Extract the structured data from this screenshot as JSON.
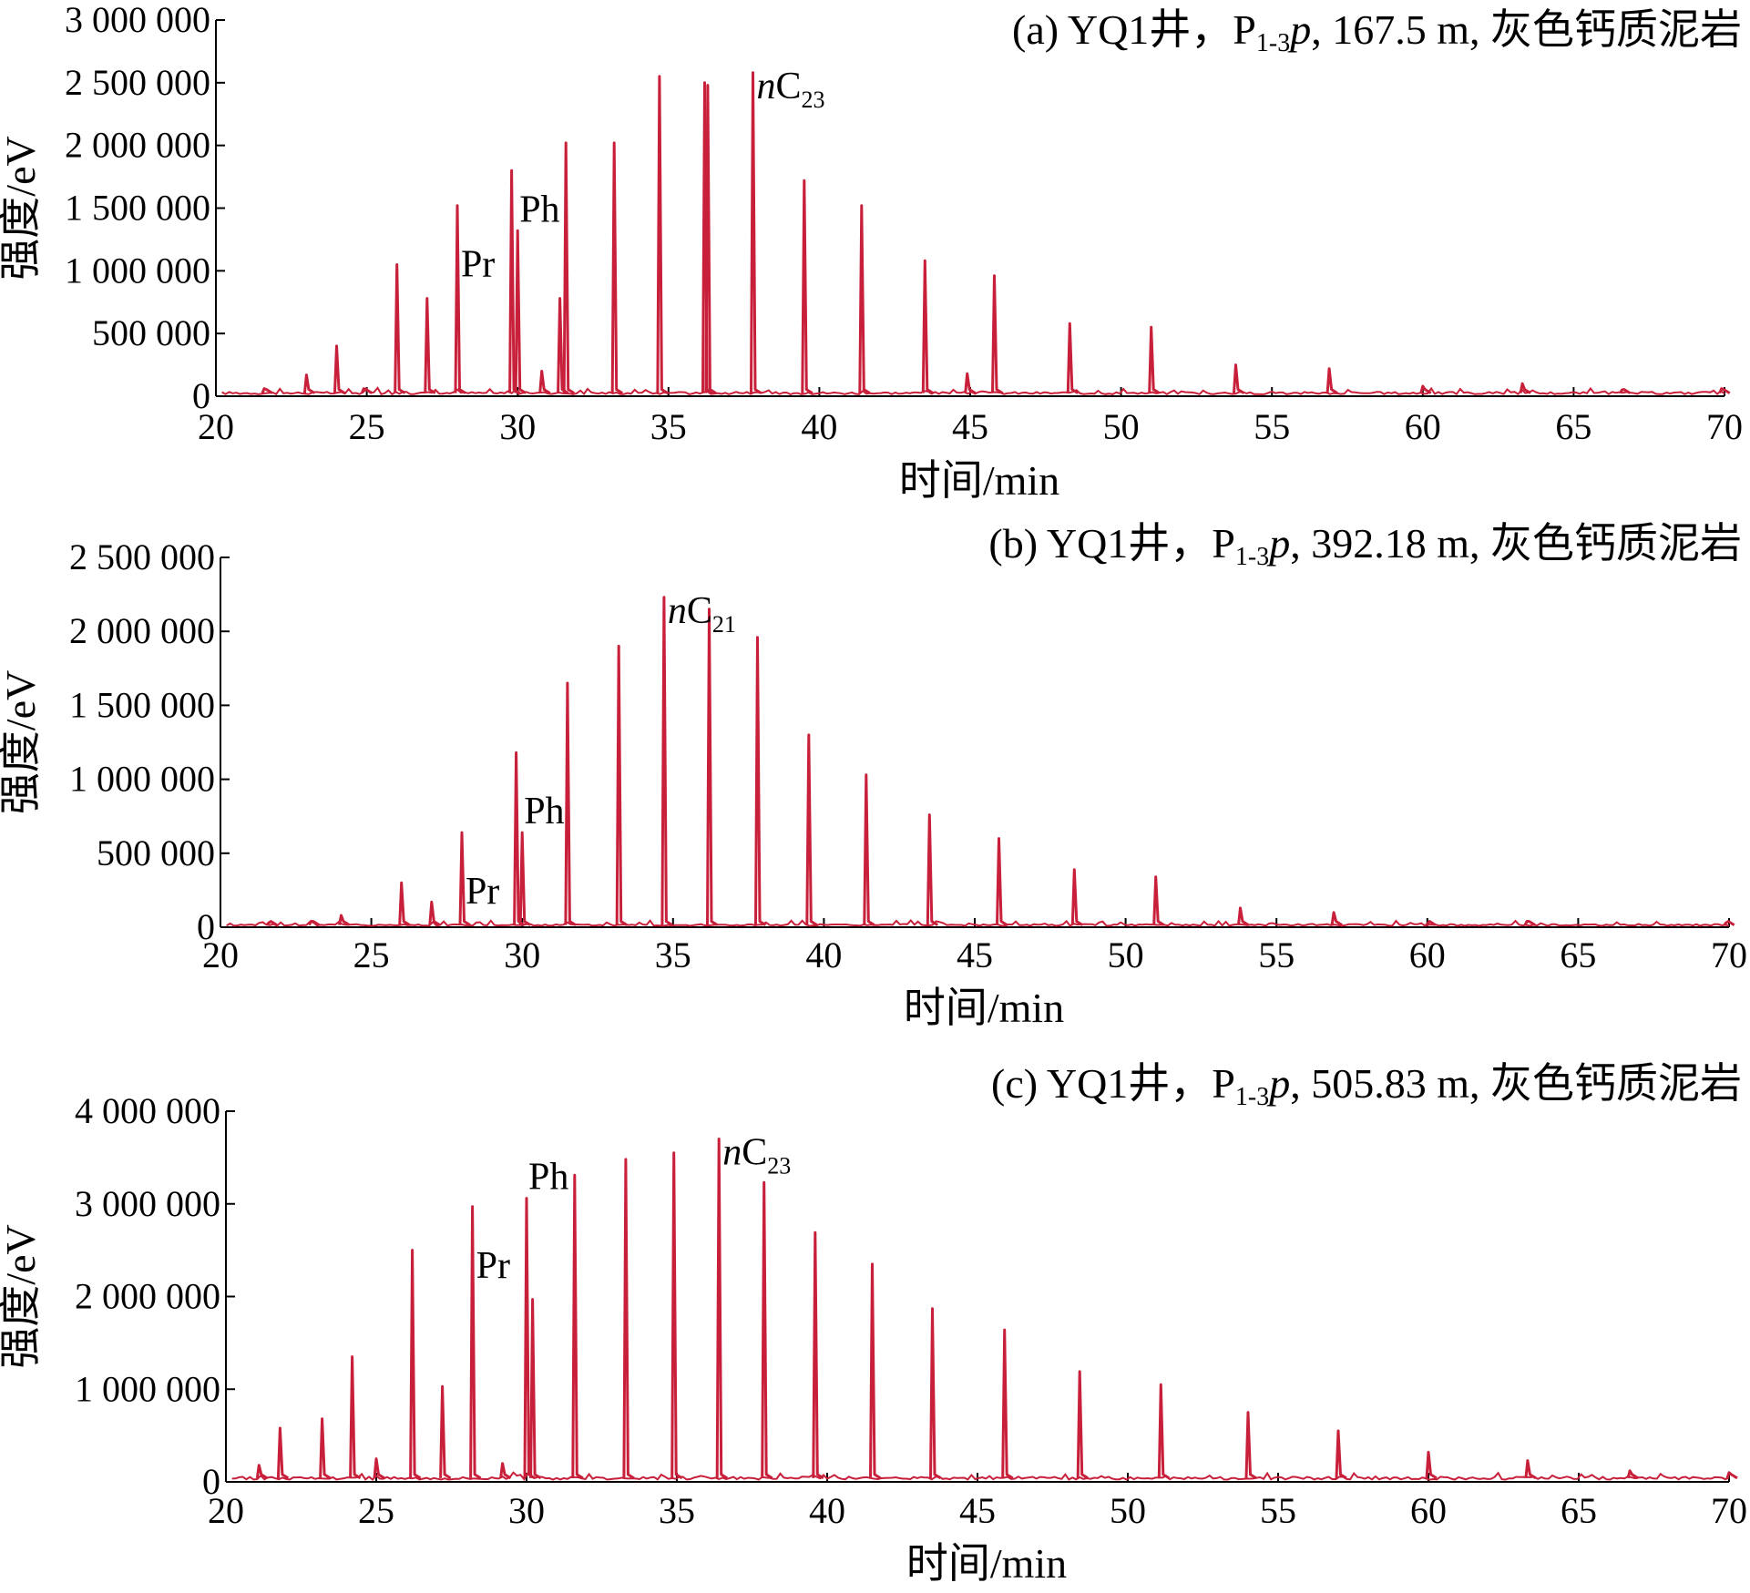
{
  "colors": {
    "trace": "#c8203a",
    "axis": "#000000"
  },
  "chart_data": [
    {
      "type": "line",
      "panel": "a",
      "title": "(a) YQ1井，P1-3p, 167.5 m, 灰色钙质泥岩",
      "title_parts": {
        "prefix": "(a) YQ1井，",
        "p": "P",
        "sub": "1-3",
        "it": "p",
        "suffix": ", 167.5 m, 灰色钙质泥岩"
      },
      "xlabel": "时间/min",
      "ylabel": "强度/eV",
      "xlim": [
        20,
        70
      ],
      "ylim": [
        0,
        3000000
      ],
      "xticks": [
        20,
        25,
        30,
        35,
        40,
        45,
        50,
        55,
        60,
        65,
        70
      ],
      "xtick_labels": [
        "20",
        "25",
        "30",
        "35",
        "40",
        "45",
        "50",
        "55",
        "60",
        "65",
        "70"
      ],
      "yticks": [
        0,
        500000,
        1000000,
        1500000,
        2000000,
        2500000,
        3000000
      ],
      "ytick_labels": [
        "0",
        "500 000",
        "1 000 000",
        "1 500 000",
        "2 000 000",
        "2 500 000",
        "3 000 000"
      ],
      "baseline": 25000,
      "peaks": [
        [
          21.6,
          60000
        ],
        [
          23.0,
          170000
        ],
        [
          24.0,
          400000
        ],
        [
          24.9,
          60000
        ],
        [
          26.0,
          1050000
        ],
        [
          27.0,
          780000
        ],
        [
          28.0,
          1520000
        ],
        [
          29.8,
          1800000
        ],
        [
          30.0,
          1320000
        ],
        [
          30.8,
          200000
        ],
        [
          31.4,
          780000
        ],
        [
          31.6,
          2020000
        ],
        [
          33.2,
          2020000
        ],
        [
          34.7,
          2550000
        ],
        [
          36.2,
          2500000
        ],
        [
          36.3,
          2480000
        ],
        [
          37.8,
          2580000
        ],
        [
          39.5,
          1720000
        ],
        [
          41.4,
          1520000
        ],
        [
          43.5,
          1080000
        ],
        [
          44.9,
          180000
        ],
        [
          45.8,
          960000
        ],
        [
          48.3,
          580000
        ],
        [
          51.0,
          550000
        ],
        [
          53.8,
          250000
        ],
        [
          56.9,
          220000
        ],
        [
          60.0,
          80000
        ],
        [
          63.3,
          100000
        ],
        [
          66.6,
          50000
        ],
        [
          69.9,
          60000
        ]
      ],
      "annotations": [
        {
          "text": "Pr",
          "x": 28.0
        },
        {
          "text": "Ph",
          "x": 30.0
        },
        {
          "text_it": "n",
          "text": "C",
          "sub": "23",
          "x": 37.8
        }
      ]
    },
    {
      "type": "line",
      "panel": "b",
      "title": "(b) YQ1井，P1-3p, 392.18 m, 灰色钙质泥岩",
      "title_parts": {
        "prefix": "(b) YQ1井，",
        "p": "P",
        "sub": "1-3",
        "it": "p",
        "suffix": ", 392.18 m, 灰色钙质泥岩"
      },
      "xlabel": "时间/min",
      "ylabel": "强度/eV",
      "xlim": [
        20,
        70
      ],
      "ylim": [
        0,
        2500000
      ],
      "xticks": [
        20,
        25,
        30,
        35,
        40,
        45,
        50,
        55,
        60,
        65,
        70
      ],
      "xtick_labels": [
        "20",
        "25",
        "30",
        "35",
        "40",
        "45",
        "50",
        "55",
        "60",
        "65",
        "70"
      ],
      "yticks": [
        0,
        500000,
        1000000,
        1500000,
        2000000,
        2500000
      ],
      "ytick_labels": [
        "0",
        "500 000",
        "1 000 000",
        "1 500 000",
        "2 000 000",
        "2 500 000"
      ],
      "baseline": 15000,
      "peaks": [
        [
          21.6,
          30000
        ],
        [
          23.0,
          40000
        ],
        [
          24.0,
          80000
        ],
        [
          26.0,
          300000
        ],
        [
          27.0,
          170000
        ],
        [
          28.0,
          640000
        ],
        [
          29.8,
          1180000
        ],
        [
          30.0,
          640000
        ],
        [
          31.5,
          1650000
        ],
        [
          33.2,
          1900000
        ],
        [
          34.7,
          2230000
        ],
        [
          36.2,
          2150000
        ],
        [
          37.8,
          1960000
        ],
        [
          39.5,
          1300000
        ],
        [
          41.4,
          1030000
        ],
        [
          43.5,
          760000
        ],
        [
          45.8,
          600000
        ],
        [
          48.3,
          390000
        ],
        [
          51.0,
          340000
        ],
        [
          53.8,
          130000
        ],
        [
          56.9,
          100000
        ],
        [
          60.0,
          20000
        ],
        [
          63.3,
          40000
        ],
        [
          69.9,
          30000
        ]
      ],
      "annotations": [
        {
          "text": "Pr",
          "x": 28.0
        },
        {
          "text": "Ph",
          "x": 30.0
        },
        {
          "text_it": "n",
          "text": "C",
          "sub": "21",
          "x": 34.7
        }
      ]
    },
    {
      "type": "line",
      "panel": "c",
      "title": "(c) YQ1井，P1-3p, 505.83 m, 灰色钙质泥岩",
      "title_parts": {
        "prefix": "(c) YQ1井，",
        "p": "P",
        "sub": "1-3",
        "it": "p",
        "suffix": ", 505.83 m, 灰色钙质泥岩"
      },
      "xlabel": "时间/min",
      "ylabel": "强度/eV",
      "xlim": [
        20,
        70
      ],
      "ylim": [
        0,
        4000000
      ],
      "xticks": [
        20,
        25,
        30,
        35,
        40,
        45,
        50,
        55,
        60,
        65,
        70
      ],
      "xtick_labels": [
        "20",
        "25",
        "30",
        "35",
        "40",
        "45",
        "50",
        "55",
        "60",
        "65",
        "70"
      ],
      "yticks": [
        0,
        1000000,
        2000000,
        3000000,
        4000000
      ],
      "ytick_labels": [
        "0",
        "1 000 000",
        "2 000 000",
        "3 000 000",
        "4 000 000"
      ],
      "baseline": 40000,
      "peaks": [
        [
          21.1,
          180000
        ],
        [
          21.8,
          580000
        ],
        [
          23.2,
          680000
        ],
        [
          24.2,
          1350000
        ],
        [
          25.0,
          250000
        ],
        [
          26.2,
          2500000
        ],
        [
          27.2,
          1030000
        ],
        [
          28.2,
          2970000
        ],
        [
          29.2,
          200000
        ],
        [
          30.0,
          3060000
        ],
        [
          30.2,
          1970000
        ],
        [
          31.6,
          3310000
        ],
        [
          33.3,
          3480000
        ],
        [
          34.9,
          3550000
        ],
        [
          36.4,
          3700000
        ],
        [
          37.9,
          3230000
        ],
        [
          39.6,
          2690000
        ],
        [
          41.5,
          2350000
        ],
        [
          43.5,
          1870000
        ],
        [
          45.9,
          1640000
        ],
        [
          48.4,
          1190000
        ],
        [
          51.1,
          1050000
        ],
        [
          54.0,
          750000
        ],
        [
          57.0,
          550000
        ],
        [
          60.0,
          320000
        ],
        [
          63.3,
          230000
        ],
        [
          66.7,
          120000
        ],
        [
          70.0,
          100000
        ]
      ],
      "annotations": [
        {
          "text": "Pr",
          "x": 28.2
        },
        {
          "text": "Ph",
          "x": 30.0
        },
        {
          "text_it": "n",
          "text": "C",
          "sub": "23",
          "x": 36.4
        }
      ]
    }
  ]
}
